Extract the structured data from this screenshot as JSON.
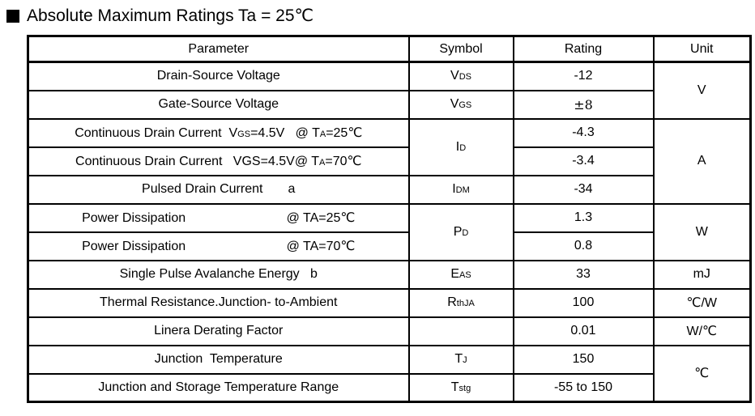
{
  "title": {
    "bullet_icon": "black-square",
    "text": "Absolute Maximum Ratings Ta = 25℃"
  },
  "table": {
    "headers": [
      "Parameter",
      "Symbol",
      "Rating",
      "Unit"
    ],
    "rows": [
      {
        "parameter": [
          {
            "t": "Drain-Source Voltage"
          }
        ],
        "symbol": [
          {
            "t": "V"
          },
          {
            "t": "DS",
            "sub": true
          }
        ],
        "rating": "-12",
        "unit": "V"
      },
      {
        "parameter": [
          {
            "t": "Gate-Source Voltage"
          }
        ],
        "symbol": [
          {
            "t": "V"
          },
          {
            "t": "GS",
            "sub": true
          }
        ],
        "rating": "±8"
      },
      {
        "parameter": [
          {
            "t": "Continuous Drain Current  V"
          },
          {
            "t": "GS",
            "sub": true
          },
          {
            "t": "=4.5V   @ T"
          },
          {
            "t": "A",
            "sub": true
          },
          {
            "t": "=25℃"
          }
        ],
        "symbol": [
          {
            "t": "I"
          },
          {
            "t": "D",
            "sub": true
          }
        ],
        "rating": "-4.3",
        "unit": "A"
      },
      {
        "parameter": [
          {
            "t": "Continuous Drain Current   VGS=4.5V@ T"
          },
          {
            "t": "A",
            "sub": true
          },
          {
            "t": "=70℃"
          }
        ],
        "rating": "-3.4"
      },
      {
        "parameter": [
          {
            "t": "Pulsed Drain Current       a"
          }
        ],
        "symbol": [
          {
            "t": "I"
          },
          {
            "t": "DM",
            "sub": true
          }
        ],
        "rating": "-34"
      },
      {
        "parameter": [
          {
            "t": "Power Dissipation                            @ TA=25℃"
          }
        ],
        "symbol": [
          {
            "t": "P"
          },
          {
            "t": "D",
            "sub": true
          }
        ],
        "rating": "1.3",
        "unit": "W"
      },
      {
        "parameter": [
          {
            "t": "Power Dissipation                            @ TA=70℃"
          }
        ],
        "rating": "0.8"
      },
      {
        "parameter": [
          {
            "t": "Single Pulse Avalanche Energy   b"
          }
        ],
        "symbol": [
          {
            "t": "E"
          },
          {
            "t": "AS",
            "sub": true
          }
        ],
        "rating": "33",
        "unit": "mJ"
      },
      {
        "parameter": [
          {
            "t": "Thermal Resistance.Junction- to-Ambient"
          }
        ],
        "symbol": [
          {
            "t": "R"
          },
          {
            "t": "thJA",
            "sub": true
          }
        ],
        "rating": "100",
        "unit": "℃/W"
      },
      {
        "parameter": [
          {
            "t": "Linera Derating Factor"
          }
        ],
        "symbol": [],
        "rating": "0.01",
        "unit": "W/℃"
      },
      {
        "parameter": [
          {
            "t": "Junction  Temperature"
          }
        ],
        "symbol": [
          {
            "t": "T"
          },
          {
            "t": "J",
            "sub": true
          }
        ],
        "rating": "150",
        "unit": "℃"
      },
      {
        "parameter": [
          {
            "t": "Junction and Storage Temperature Range"
          }
        ],
        "symbol": [
          {
            "t": "T"
          },
          {
            "t": "stg",
            "sub": true
          }
        ],
        "rating": "-55 to 150"
      }
    ]
  }
}
